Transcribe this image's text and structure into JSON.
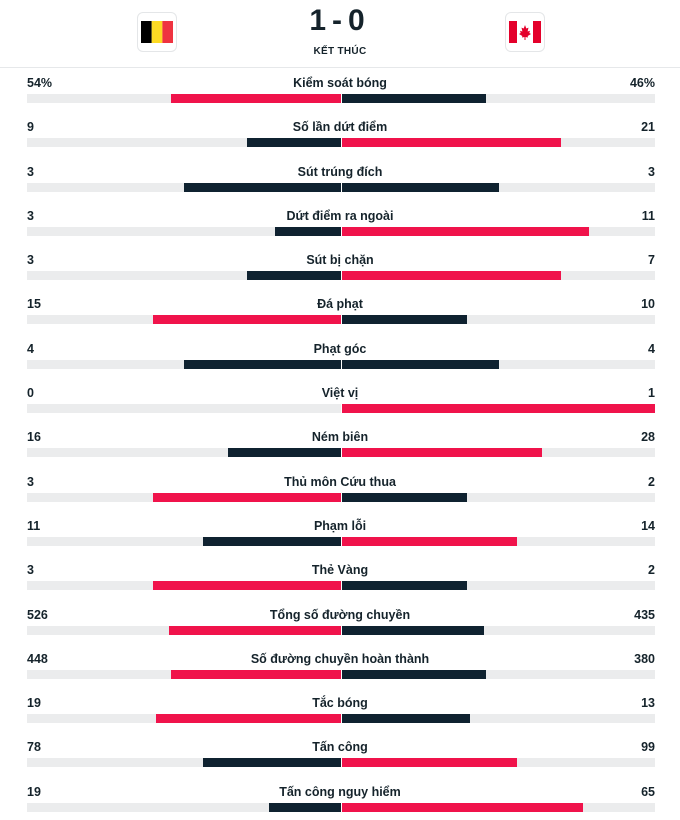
{
  "match": {
    "home_flag": "belgium-flag",
    "away_flag": "canada-flag",
    "score": "1-0",
    "status": "KẾT THÚC"
  },
  "colors": {
    "leading": "#f0134b",
    "trailing": "#0f2230",
    "track": "#ebeced"
  },
  "stats": [
    {
      "label": "Kiểm soát bóng",
      "home": "54%",
      "away": "46%",
      "home_share": 0.54,
      "away_share": 0.46
    },
    {
      "label": "Số lần dứt điểm",
      "home": "9",
      "away": "21",
      "home_share": 0.3,
      "away_share": 0.7
    },
    {
      "label": "Sút trúng đích",
      "home": "3",
      "away": "3",
      "home_share": 0.5,
      "away_share": 0.5
    },
    {
      "label": "Dứt điểm ra ngoài",
      "home": "3",
      "away": "11",
      "home_share": 0.21,
      "away_share": 0.79
    },
    {
      "label": "Sút bị chặn",
      "home": "3",
      "away": "7",
      "home_share": 0.3,
      "away_share": 0.7
    },
    {
      "label": "Đá phạt",
      "home": "15",
      "away": "10",
      "home_share": 0.6,
      "away_share": 0.4
    },
    {
      "label": "Phạt góc",
      "home": "4",
      "away": "4",
      "home_share": 0.5,
      "away_share": 0.5
    },
    {
      "label": "Việt vị",
      "home": "0",
      "away": "1",
      "home_share": 0.0,
      "away_share": 1.0
    },
    {
      "label": "Ném biên",
      "home": "16",
      "away": "28",
      "home_share": 0.36,
      "away_share": 0.64
    },
    {
      "label": "Thủ môn Cứu thua",
      "home": "3",
      "away": "2",
      "home_share": 0.6,
      "away_share": 0.4
    },
    {
      "label": "Phạm lỗi",
      "home": "11",
      "away": "14",
      "home_share": 0.44,
      "away_share": 0.56
    },
    {
      "label": "Thẻ Vàng",
      "home": "3",
      "away": "2",
      "home_share": 0.6,
      "away_share": 0.4
    },
    {
      "label": "Tổng số đường chuyền",
      "home": "526",
      "away": "435",
      "home_share": 0.547,
      "away_share": 0.453
    },
    {
      "label": "Số đường chuyền hoàn thành",
      "home": "448",
      "away": "380",
      "home_share": 0.541,
      "away_share": 0.459
    },
    {
      "label": "Tắc bóng",
      "home": "19",
      "away": "13",
      "home_share": 0.59,
      "away_share": 0.41
    },
    {
      "label": "Tấn công",
      "home": "78",
      "away": "99",
      "home_share": 0.44,
      "away_share": 0.56
    },
    {
      "label": "Tấn công nguy hiểm",
      "home": "19",
      "away": "65",
      "home_share": 0.23,
      "away_share": 0.77
    }
  ]
}
